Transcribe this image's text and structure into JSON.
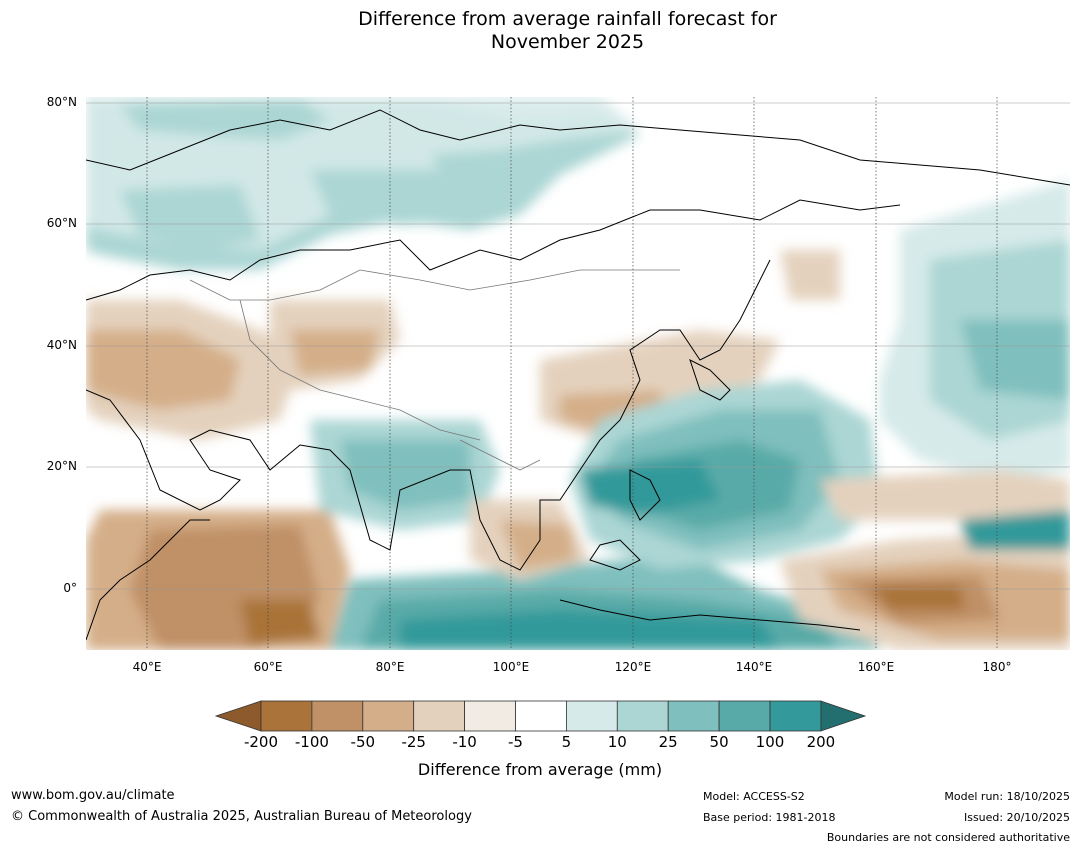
{
  "title": {
    "line1": "Difference from average rainfall forecast for",
    "line2": "November 2025"
  },
  "map": {
    "lat_labels": [
      "80°N",
      "60°N",
      "40°N",
      "20°N",
      "0°"
    ],
    "lon_labels": [
      "40°E",
      "60°E",
      "80°E",
      "100°E",
      "120°E",
      "140°E",
      "160°E",
      "180°"
    ],
    "extent": {
      "lon_min": 30,
      "lon_max": 192,
      "lat_min": -10,
      "lat_max": 81
    }
  },
  "colorbar": {
    "label": "Difference from average (mm)",
    "ticks": [
      "-200",
      "-100",
      "-50",
      "-25",
      "-10",
      "-5",
      "5",
      "10",
      "25",
      "50",
      "100",
      "200"
    ],
    "colors": [
      "#8c5a2c",
      "#a97339",
      "#c09066",
      "#d4ae88",
      "#e4d1bd",
      "#f1ebe4",
      "#ffffff",
      "#d5eae9",
      "#abd6d4",
      "#7fbfbd",
      "#58aaa8",
      "#33999a",
      "#236e6e"
    ]
  },
  "footer": {
    "website": "www.bom.gov.au/climate",
    "copyright": "© Commonwealth of Australia 2025, Australian Bureau of Meteorology",
    "model": "Model: ACCESS-S2",
    "base_period": "Base period: 1981-2018",
    "model_run": "Model run: 18/10/2025",
    "issued": "Issued: 20/10/2025",
    "disclaimer": "Boundaries are not considered authoritative"
  }
}
